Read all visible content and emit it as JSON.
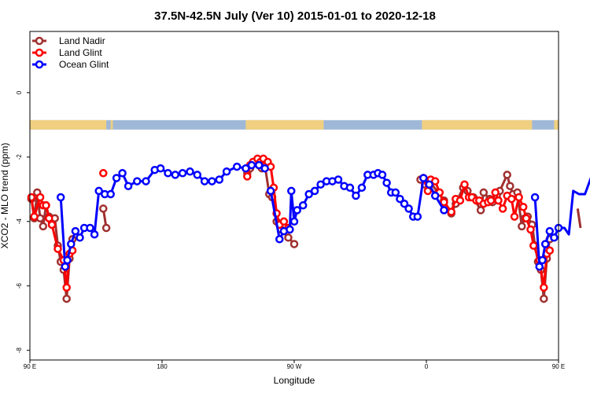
{
  "chart_data": {
    "type": "line",
    "title": "37.5N-42.5N July (Ver 10)   2015-01-01 to 2020-12-18",
    "xlabel": "Longitude",
    "ylabel": "XCO2 - MLO trend (ppm)",
    "x_unit": "degrees east (0-450, wrapping)",
    "xlim": [
      90,
      450
    ],
    "ylim": [
      -8.3,
      1.9
    ],
    "x_ticks": [
      {
        "value": 90,
        "label": "90 E"
      },
      {
        "value": 180,
        "label": "180"
      },
      {
        "value": 270,
        "label": "90 W"
      },
      {
        "value": 360,
        "label": "0"
      },
      {
        "value": 450,
        "label": "90 E"
      },
      {
        "value": 540,
        "label": "180"
      }
    ],
    "y_ticks": [
      {
        "value": 0,
        "label": "0"
      },
      {
        "value": -2,
        "label": "-2"
      },
      {
        "value": -4,
        "label": "-4"
      },
      {
        "value": -6,
        "label": "-6"
      },
      {
        "value": -8,
        "label": "-8"
      }
    ],
    "legend_position": "top-left",
    "grid": false,
    "landmask": {
      "y_center": -1.0,
      "land_color": "#F0D080",
      "ocean_color": "#A0B8D8",
      "land_ranges": [
        [
          90,
          142
        ],
        [
          139.5,
          140.0
        ],
        [
          141.5,
          142.0
        ],
        [
          145,
          146.5
        ],
        [
          237,
          290
        ],
        [
          357,
          432
        ],
        [
          447,
          500
        ],
        [
          519,
          520.5
        ]
      ]
    },
    "series": [
      {
        "name": "Land Nadir",
        "color": "#A03030",
        "points": [
          [
            91,
            -3.3
          ],
          [
            93,
            -3.9
          ],
          [
            95,
            -3.1
          ],
          [
            97,
            -3.9
          ],
          [
            99,
            -4.15
          ],
          [
            101,
            -3.5
          ],
          [
            103,
            -3.85
          ],
          [
            105,
            -4.05
          ],
          [
            107,
            -3.9
          ],
          [
            109,
            -4.75
          ],
          [
            111,
            -5.25
          ],
          [
            113,
            -5.5
          ],
          [
            115,
            -6.4
          ],
          [
            117,
            -5.15
          ],
          [
            119,
            -4.55
          ],
          null,
          [
            140,
            -3.6
          ],
          [
            142,
            -4.2
          ],
          null,
          [
            238,
            -2.5
          ],
          [
            240,
            -2.35
          ],
          [
            242,
            -2.2
          ],
          [
            246,
            -2.25
          ],
          [
            248,
            -2.35
          ],
          [
            250,
            -2.25
          ],
          [
            253,
            -3.15
          ],
          [
            255,
            -3.25
          ],
          [
            258,
            -4.0
          ],
          [
            261,
            -4.25
          ],
          [
            266,
            -4.5
          ],
          [
            270,
            -4.7
          ],
          null,
          [
            356,
            -2.7
          ],
          [
            359,
            -2.85
          ],
          [
            362,
            -2.75
          ],
          [
            368,
            -3.1
          ],
          [
            372,
            -3.35
          ],
          [
            377,
            -3.75
          ],
          [
            380,
            -3.45
          ],
          [
            385,
            -2.95
          ],
          [
            388,
            -3.05
          ],
          [
            392,
            -3.25
          ],
          [
            397,
            -3.65
          ],
          [
            399,
            -3.1
          ],
          [
            403,
            -3.3
          ],
          [
            405,
            -3.4
          ],
          [
            408,
            -3.2
          ],
          [
            410,
            -3.05
          ],
          [
            415,
            -2.55
          ],
          [
            417,
            -2.9
          ],
          [
            419,
            -3.15
          ],
          [
            422,
            -3.1
          ],
          [
            425,
            -4.15
          ],
          [
            427,
            -3.9
          ],
          [
            429,
            -3.85
          ],
          [
            432,
            -4.1
          ],
          [
            434,
            -4.75
          ],
          [
            436,
            -5.25
          ],
          [
            438,
            -5.5
          ],
          [
            440,
            -6.4
          ],
          [
            442,
            -5.15
          ],
          [
            444,
            -4.55
          ],
          null,
          [
            463,
            -3.6
          ],
          [
            465,
            -4.2
          ]
        ]
      },
      {
        "name": "Land Glint",
        "color": "#FF0000",
        "points": [
          [
            91,
            -3.25
          ],
          [
            93,
            -3.85
          ],
          [
            97,
            -3.25
          ],
          [
            99,
            -3.5
          ],
          [
            101,
            -3.5
          ],
          [
            103,
            -3.9
          ],
          [
            105,
            -4.1
          ],
          [
            109,
            -4.85
          ],
          [
            113,
            -5.2
          ],
          [
            115,
            -6.05
          ],
          [
            117,
            -5.0
          ],
          [
            119,
            -4.9
          ],
          null,
          [
            140,
            -2.5
          ],
          null,
          [
            238,
            -2.6
          ],
          [
            240,
            -2.25
          ],
          [
            242,
            -2.15
          ],
          [
            245,
            -2.05
          ],
          [
            247,
            -2.15
          ],
          [
            249,
            -2.05
          ],
          [
            252,
            -2.15
          ],
          [
            254,
            -2.3
          ],
          [
            256,
            -2.95
          ],
          [
            258,
            -3.75
          ],
          [
            260,
            -4.1
          ],
          [
            263,
            -4.0
          ],
          [
            266,
            -4.2
          ],
          null,
          [
            358,
            -2.65
          ],
          [
            361,
            -3.05
          ],
          [
            363,
            -2.7
          ],
          [
            366,
            -2.75
          ],
          [
            369,
            -3.1
          ],
          [
            372,
            -3.4
          ],
          [
            377,
            -3.7
          ],
          [
            380,
            -3.3
          ],
          [
            383,
            -3.35
          ],
          [
            386,
            -2.85
          ],
          [
            389,
            -3.25
          ],
          [
            391,
            -3.25
          ],
          [
            394,
            -3.35
          ],
          [
            396,
            -3.35
          ],
          [
            399,
            -3.45
          ],
          [
            402,
            -3.4
          ],
          [
            404,
            -3.35
          ],
          [
            407,
            -3.1
          ],
          [
            409,
            -3.35
          ],
          [
            412,
            -3.6
          ],
          [
            415,
            -3.2
          ],
          [
            418,
            -3.3
          ],
          [
            420,
            -3.85
          ],
          [
            423,
            -3.25
          ],
          [
            426,
            -3.55
          ],
          [
            428,
            -3.9
          ],
          [
            431,
            -4.25
          ],
          [
            433,
            -4.75
          ],
          [
            437,
            -5.2
          ],
          [
            440,
            -6.05
          ],
          [
            442,
            -5.0
          ],
          [
            444,
            -4.9
          ],
          null,
          [
            464,
            -2.5
          ]
        ]
      },
      {
        "name": "Ocean Glint",
        "color": "#0000FF",
        "points": [
          [
            111,
            -3.25
          ],
          [
            114,
            -5.4
          ],
          [
            115.5,
            -5.2
          ],
          [
            118,
            -4.7
          ],
          [
            121,
            -4.3
          ],
          [
            124,
            -4.5
          ],
          [
            127,
            -4.2
          ],
          [
            131,
            -4.2
          ],
          [
            134,
            -4.4
          ],
          [
            137,
            -3.05
          ],
          [
            141,
            -3.15
          ],
          [
            145,
            -3.15
          ],
          [
            149,
            -2.65
          ],
          [
            153,
            -2.5
          ],
          [
            157,
            -2.9
          ],
          [
            163,
            -2.75
          ],
          [
            169,
            -2.75
          ],
          [
            175,
            -2.4
          ],
          [
            179,
            -2.35
          ],
          [
            184,
            -2.5
          ],
          [
            189,
            -2.55
          ],
          [
            194,
            -2.5
          ],
          [
            199,
            -2.45
          ],
          [
            204,
            -2.55
          ],
          [
            209,
            -2.75
          ],
          [
            214,
            -2.75
          ],
          [
            219,
            -2.7
          ],
          [
            224,
            -2.45
          ],
          [
            231,
            -2.3
          ],
          [
            237,
            -2.35
          ],
          [
            241,
            -2.25
          ],
          [
            246,
            -2.25
          ],
          [
            250,
            -2.35
          ],
          null,
          [
            254,
            -3.05
          ],
          [
            260,
            -4.55
          ],
          [
            263,
            -4.3
          ],
          [
            267,
            -4.25
          ],
          [
            268,
            -3.05
          ],
          [
            270,
            -4.0
          ],
          [
            272,
            -3.65
          ],
          [
            276,
            -3.5
          ],
          [
            280,
            -3.15
          ],
          [
            284,
            -3.05
          ],
          [
            288,
            -2.85
          ],
          [
            292,
            -2.75
          ],
          [
            296,
            -2.75
          ],
          [
            300,
            -2.7
          ],
          [
            304,
            -2.9
          ],
          [
            308,
            -2.95
          ],
          [
            312,
            -3.2
          ],
          [
            316,
            -2.95
          ],
          [
            320,
            -2.55
          ],
          [
            324,
            -2.55
          ],
          [
            327,
            -2.5
          ],
          [
            330,
            -2.55
          ],
          [
            333,
            -2.8
          ],
          [
            336,
            -3.1
          ],
          [
            339,
            -3.1
          ],
          [
            342,
            -3.3
          ],
          [
            345,
            -3.45
          ],
          [
            348,
            -3.6
          ],
          [
            351,
            -3.85
          ],
          [
            354,
            -3.85
          ],
          [
            358,
            -2.65
          ],
          [
            362,
            -2.85
          ],
          [
            366,
            -3.2
          ],
          [
            372,
            -3.65
          ],
          null,
          [
            434,
            -3.25
          ],
          [
            437,
            -5.4
          ],
          [
            439,
            -5.2
          ],
          [
            441,
            -4.7
          ],
          [
            444,
            -4.3
          ],
          [
            447,
            -4.5
          ],
          [
            450,
            -4.2
          ],
          [
            454,
            -4.2
          ],
          [
            457,
            -4.4
          ],
          [
            460,
            -3.05
          ],
          [
            464,
            -3.15
          ],
          [
            468,
            -3.15
          ],
          [
            472,
            -2.65
          ],
          [
            476,
            -2.5
          ],
          [
            480,
            -2.9
          ],
          [
            484,
            -2.75
          ]
        ]
      }
    ]
  }
}
